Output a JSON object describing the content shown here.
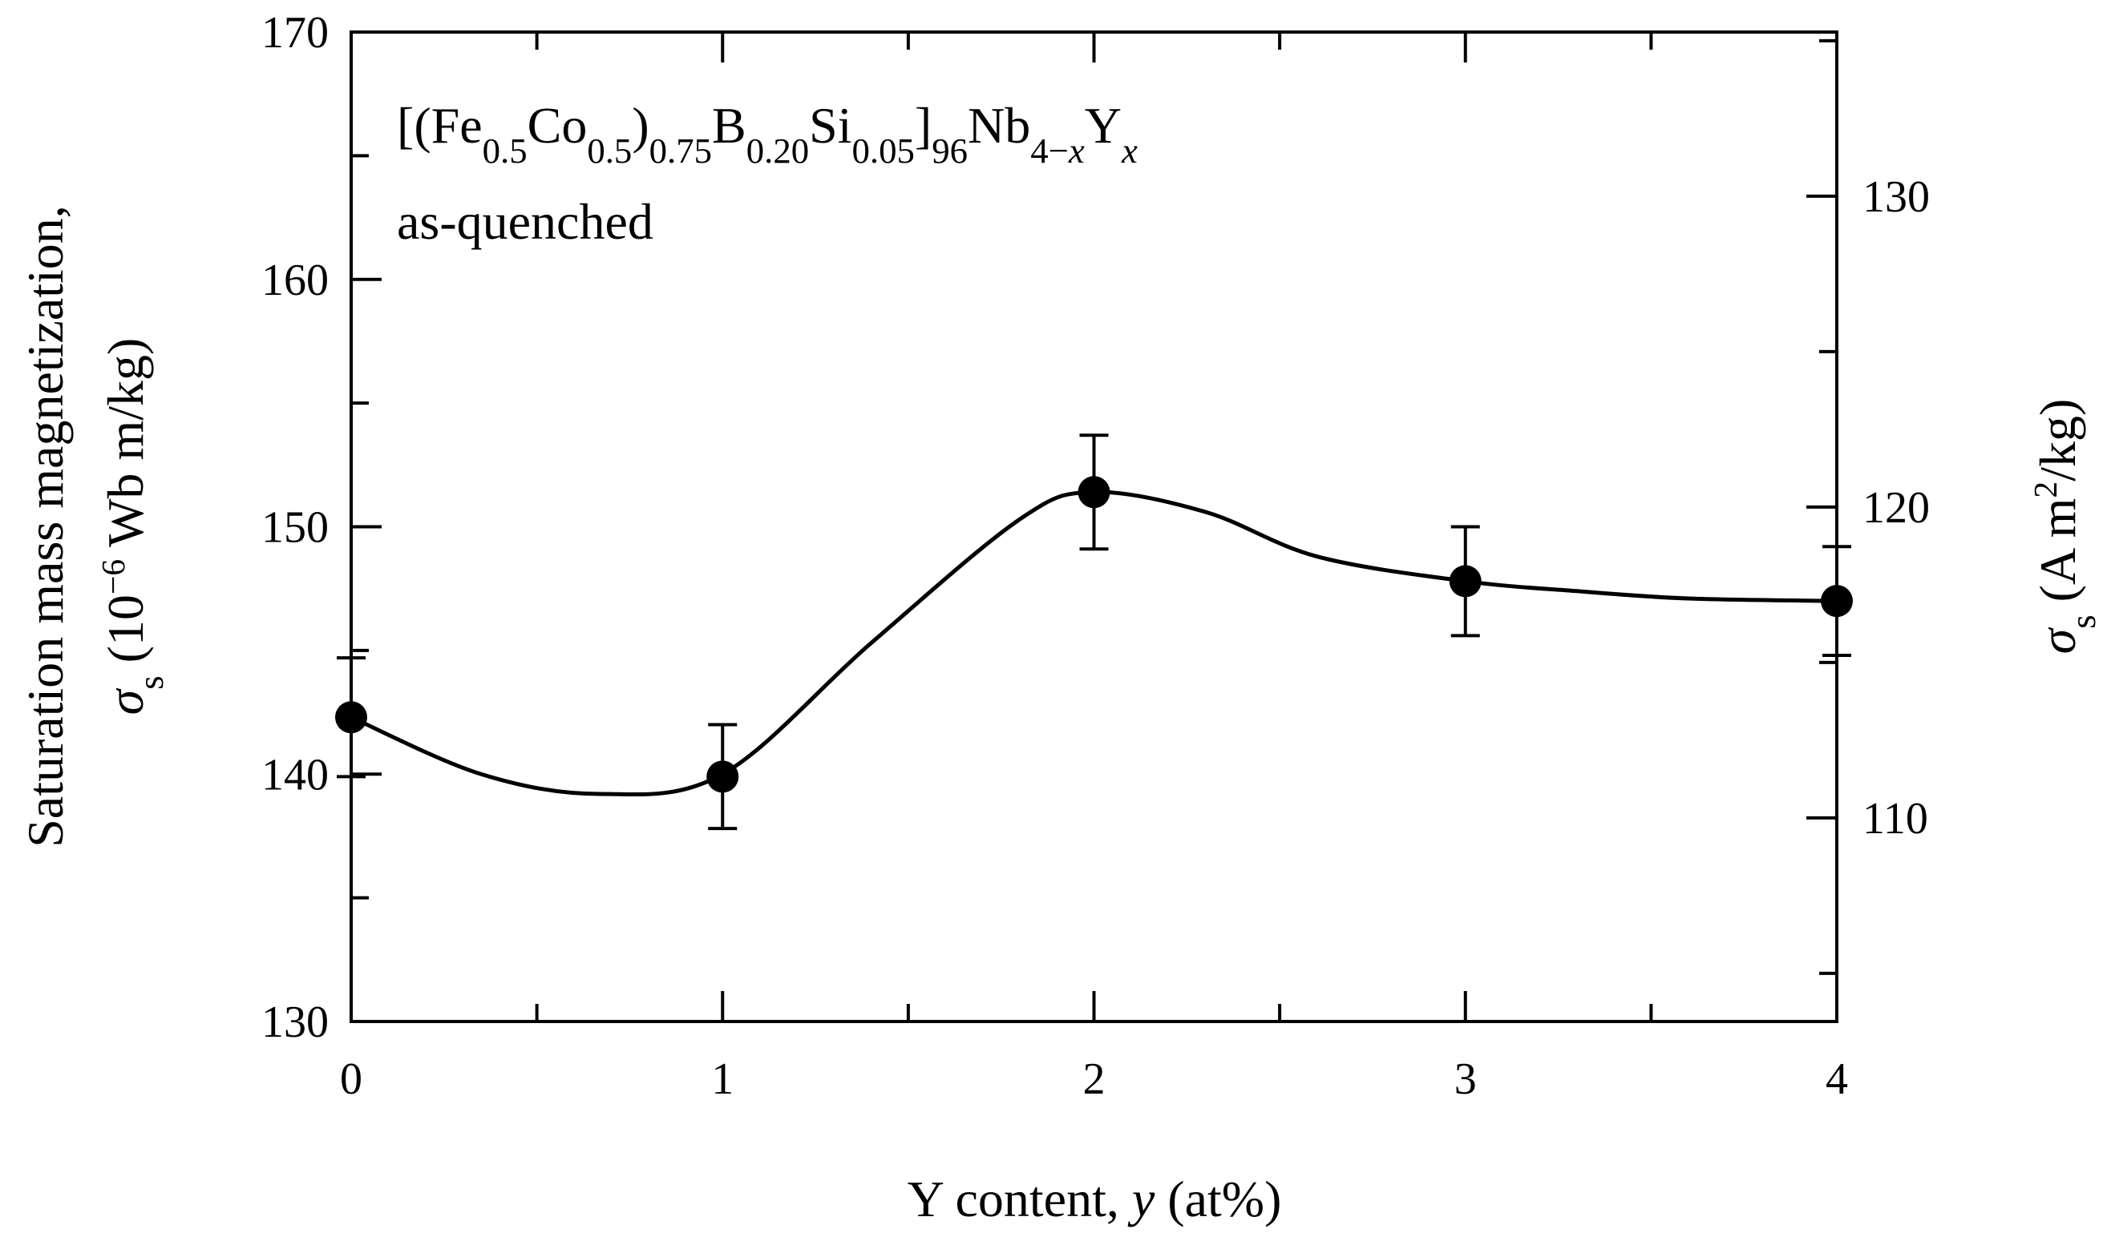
{
  "chart_data": {
    "type": "scatter",
    "annotation": {
      "formula": [
        {
          "t": "[(Fe"
        },
        {
          "t": "0.5",
          "s": "sub"
        },
        {
          "t": "Co"
        },
        {
          "t": "0.5",
          "s": "sub"
        },
        {
          "t": ")"
        },
        {
          "t": "0.75",
          "s": "sub"
        },
        {
          "t": "B"
        },
        {
          "t": "0.20",
          "s": "sub"
        },
        {
          "t": "Si"
        },
        {
          "t": "0.05",
          "s": "sub"
        },
        {
          "t": "]"
        },
        {
          "t": "96",
          "s": "sub"
        },
        {
          "t": "Nb"
        },
        {
          "t": "4−",
          "s": "sub"
        },
        {
          "t": "x",
          "s": "sub-italic"
        },
        {
          "t": "Y"
        },
        {
          "t": "x",
          "s": "sub-italic"
        }
      ],
      "condition": "as-quenched"
    },
    "xlabel": [
      {
        "t": "Y content, "
      },
      {
        "t": "y",
        "s": "italic"
      },
      {
        "t": " (at%)"
      }
    ],
    "ylabel_line1": "Saturation mass magnetization,",
    "ylabel_line2": [
      {
        "t": "σ",
        "s": "italic"
      },
      {
        "t": "s",
        "s": "sub"
      },
      {
        "t": " (10"
      },
      {
        "t": "−6",
        "s": "sup"
      },
      {
        "t": " Wb m/kg)"
      }
    ],
    "y2label": [
      {
        "t": "σ",
        "s": "italic"
      },
      {
        "t": "s",
        "s": "sub"
      },
      {
        "t": " (A m"
      },
      {
        "t": "2",
        "s": "sup"
      },
      {
        "t": "/kg)"
      }
    ],
    "xlim": [
      0,
      4
    ],
    "ylim": [
      130,
      170
    ],
    "y2lim": [
      103.45,
      135.28
    ],
    "x_ticks": [
      "0",
      "1",
      "2",
      "3",
      "4"
    ],
    "y_ticks": [
      "130",
      "140",
      "150",
      "160",
      "170"
    ],
    "y2_ticks": [
      "110",
      "120",
      "130"
    ],
    "grid": false,
    "legend": "none",
    "series": [
      {
        "x": [
          0,
          1,
          2,
          3,
          4
        ],
        "y": [
          142.3,
          139.9,
          151.4,
          147.8,
          147.0
        ],
        "error": [
          2.4,
          2.1,
          2.3,
          2.2,
          2.2
        ],
        "marker": "filled-circle",
        "color": "#000000"
      }
    ],
    "fit_curve": {
      "x": [
        0,
        0.35,
        0.67,
        1.0,
        1.4,
        1.8,
        2.0,
        2.3,
        2.6,
        3.0,
        3.3,
        3.6,
        4.0
      ],
      "y": [
        142.3,
        140.0,
        139.2,
        140.0,
        145.3,
        150.3,
        151.4,
        150.6,
        148.8,
        147.8,
        147.4,
        147.1,
        147.0
      ]
    }
  }
}
